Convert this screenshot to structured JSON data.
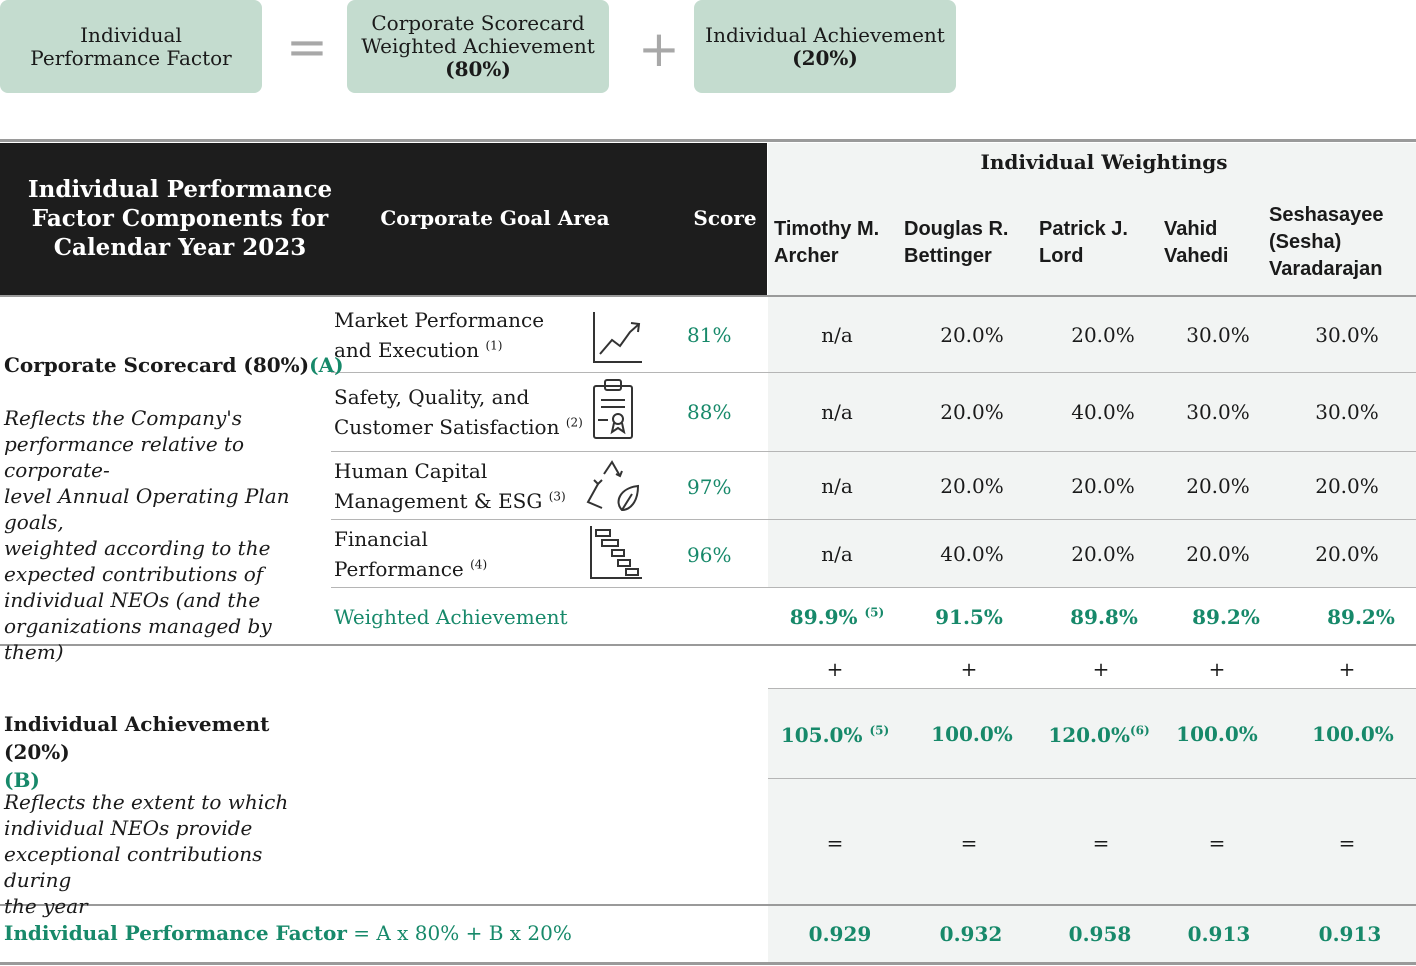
{
  "formula": {
    "left": "Individual Performance Factor",
    "equals": "=",
    "box2_line1": "Corporate Scorecard",
    "box2_line2": "Weighted Achievement",
    "box2_pct": "(80%)",
    "plus": "+",
    "box3_line1": "Individual Achievement",
    "box3_pct": "(20%)"
  },
  "header": {
    "components_line1": "Individual Performance",
    "components_line2": "Factor Components for",
    "components_line3": "Calendar Year 2023",
    "goal_area": "Corporate Goal Area",
    "score": "Score",
    "weightings": "Individual Weightings",
    "neos": [
      {
        "line1": "Timothy M.",
        "line2": "Archer"
      },
      {
        "line1": "Douglas R.",
        "line2": "Bettinger"
      },
      {
        "line1": "Patrick J.",
        "line2": "Lord"
      },
      {
        "line1": "Vahid",
        "line2": "Vahedi"
      },
      {
        "line1": "Seshasayee",
        "line2": "(Sesha)",
        "line3": "Varadarajan"
      }
    ]
  },
  "scorecard": {
    "title": "Corporate Scorecard (80%)",
    "tag": "(A)",
    "desc": [
      "Reflects the Company's",
      "performance relative to corporate-",
      "level Annual Operating Plan goals,",
      "weighted according to the",
      "expected contributions of",
      "individual NEOs (and the",
      "organizations managed by them)"
    ],
    "rows": [
      {
        "l1": "Market Performance",
        "l2": "and Execution",
        "note": "(1)",
        "icon": "chart-trend-icon",
        "score": "81%",
        "w": [
          "n/a",
          "20.0%",
          "20.0%",
          "30.0%",
          "30.0%"
        ]
      },
      {
        "l1": "Safety, Quality, and",
        "l2": "Customer Satisfaction",
        "note": "(2)",
        "icon": "clipboard-certificate-icon",
        "score": "88%",
        "w": [
          "n/a",
          "20.0%",
          "40.0%",
          "30.0%",
          "30.0%"
        ]
      },
      {
        "l1": "Human Capital",
        "l2": "Management & ESG",
        "note": "(3)",
        "icon": "recycle-leaf-icon",
        "score": "97%",
        "w": [
          "n/a",
          "20.0%",
          "20.0%",
          "20.0%",
          "20.0%"
        ]
      },
      {
        "l1": "Financial",
        "l2": "Performance",
        "note": "(4)",
        "icon": "gantt-chart-icon",
        "score": "96%",
        "w": [
          "n/a",
          "40.0%",
          "20.0%",
          "20.0%",
          "20.0%"
        ]
      }
    ],
    "weighted_label": "Weighted Achievement",
    "weighted": [
      {
        "v": "89.9%",
        "note": "(5)"
      },
      {
        "v": "91.5%",
        "note": ""
      },
      {
        "v": "89.8%",
        "note": ""
      },
      {
        "v": "89.2%",
        "note": ""
      },
      {
        "v": "89.2%",
        "note": ""
      }
    ]
  },
  "individual": {
    "title": "Individual Achievement (20%)",
    "tag": "(B)",
    "desc": [
      "Reflects the extent to which",
      "individual NEOs provide",
      "exceptional contributions during",
      "the year"
    ],
    "plus": "+",
    "equals": "=",
    "values": [
      {
        "v": "105.0%",
        "note": "(5)"
      },
      {
        "v": "100.0%",
        "note": ""
      },
      {
        "v": "120.0%",
        "note": "(6)"
      },
      {
        "v": "100.0%",
        "note": ""
      },
      {
        "v": "100.0%",
        "note": ""
      }
    ]
  },
  "ipf": {
    "label": "Individual Performance Factor",
    "formula": "= A x 80% + B x 20%",
    "values": [
      "0.929",
      "0.932",
      "0.958",
      "0.913",
      "0.913"
    ]
  }
}
